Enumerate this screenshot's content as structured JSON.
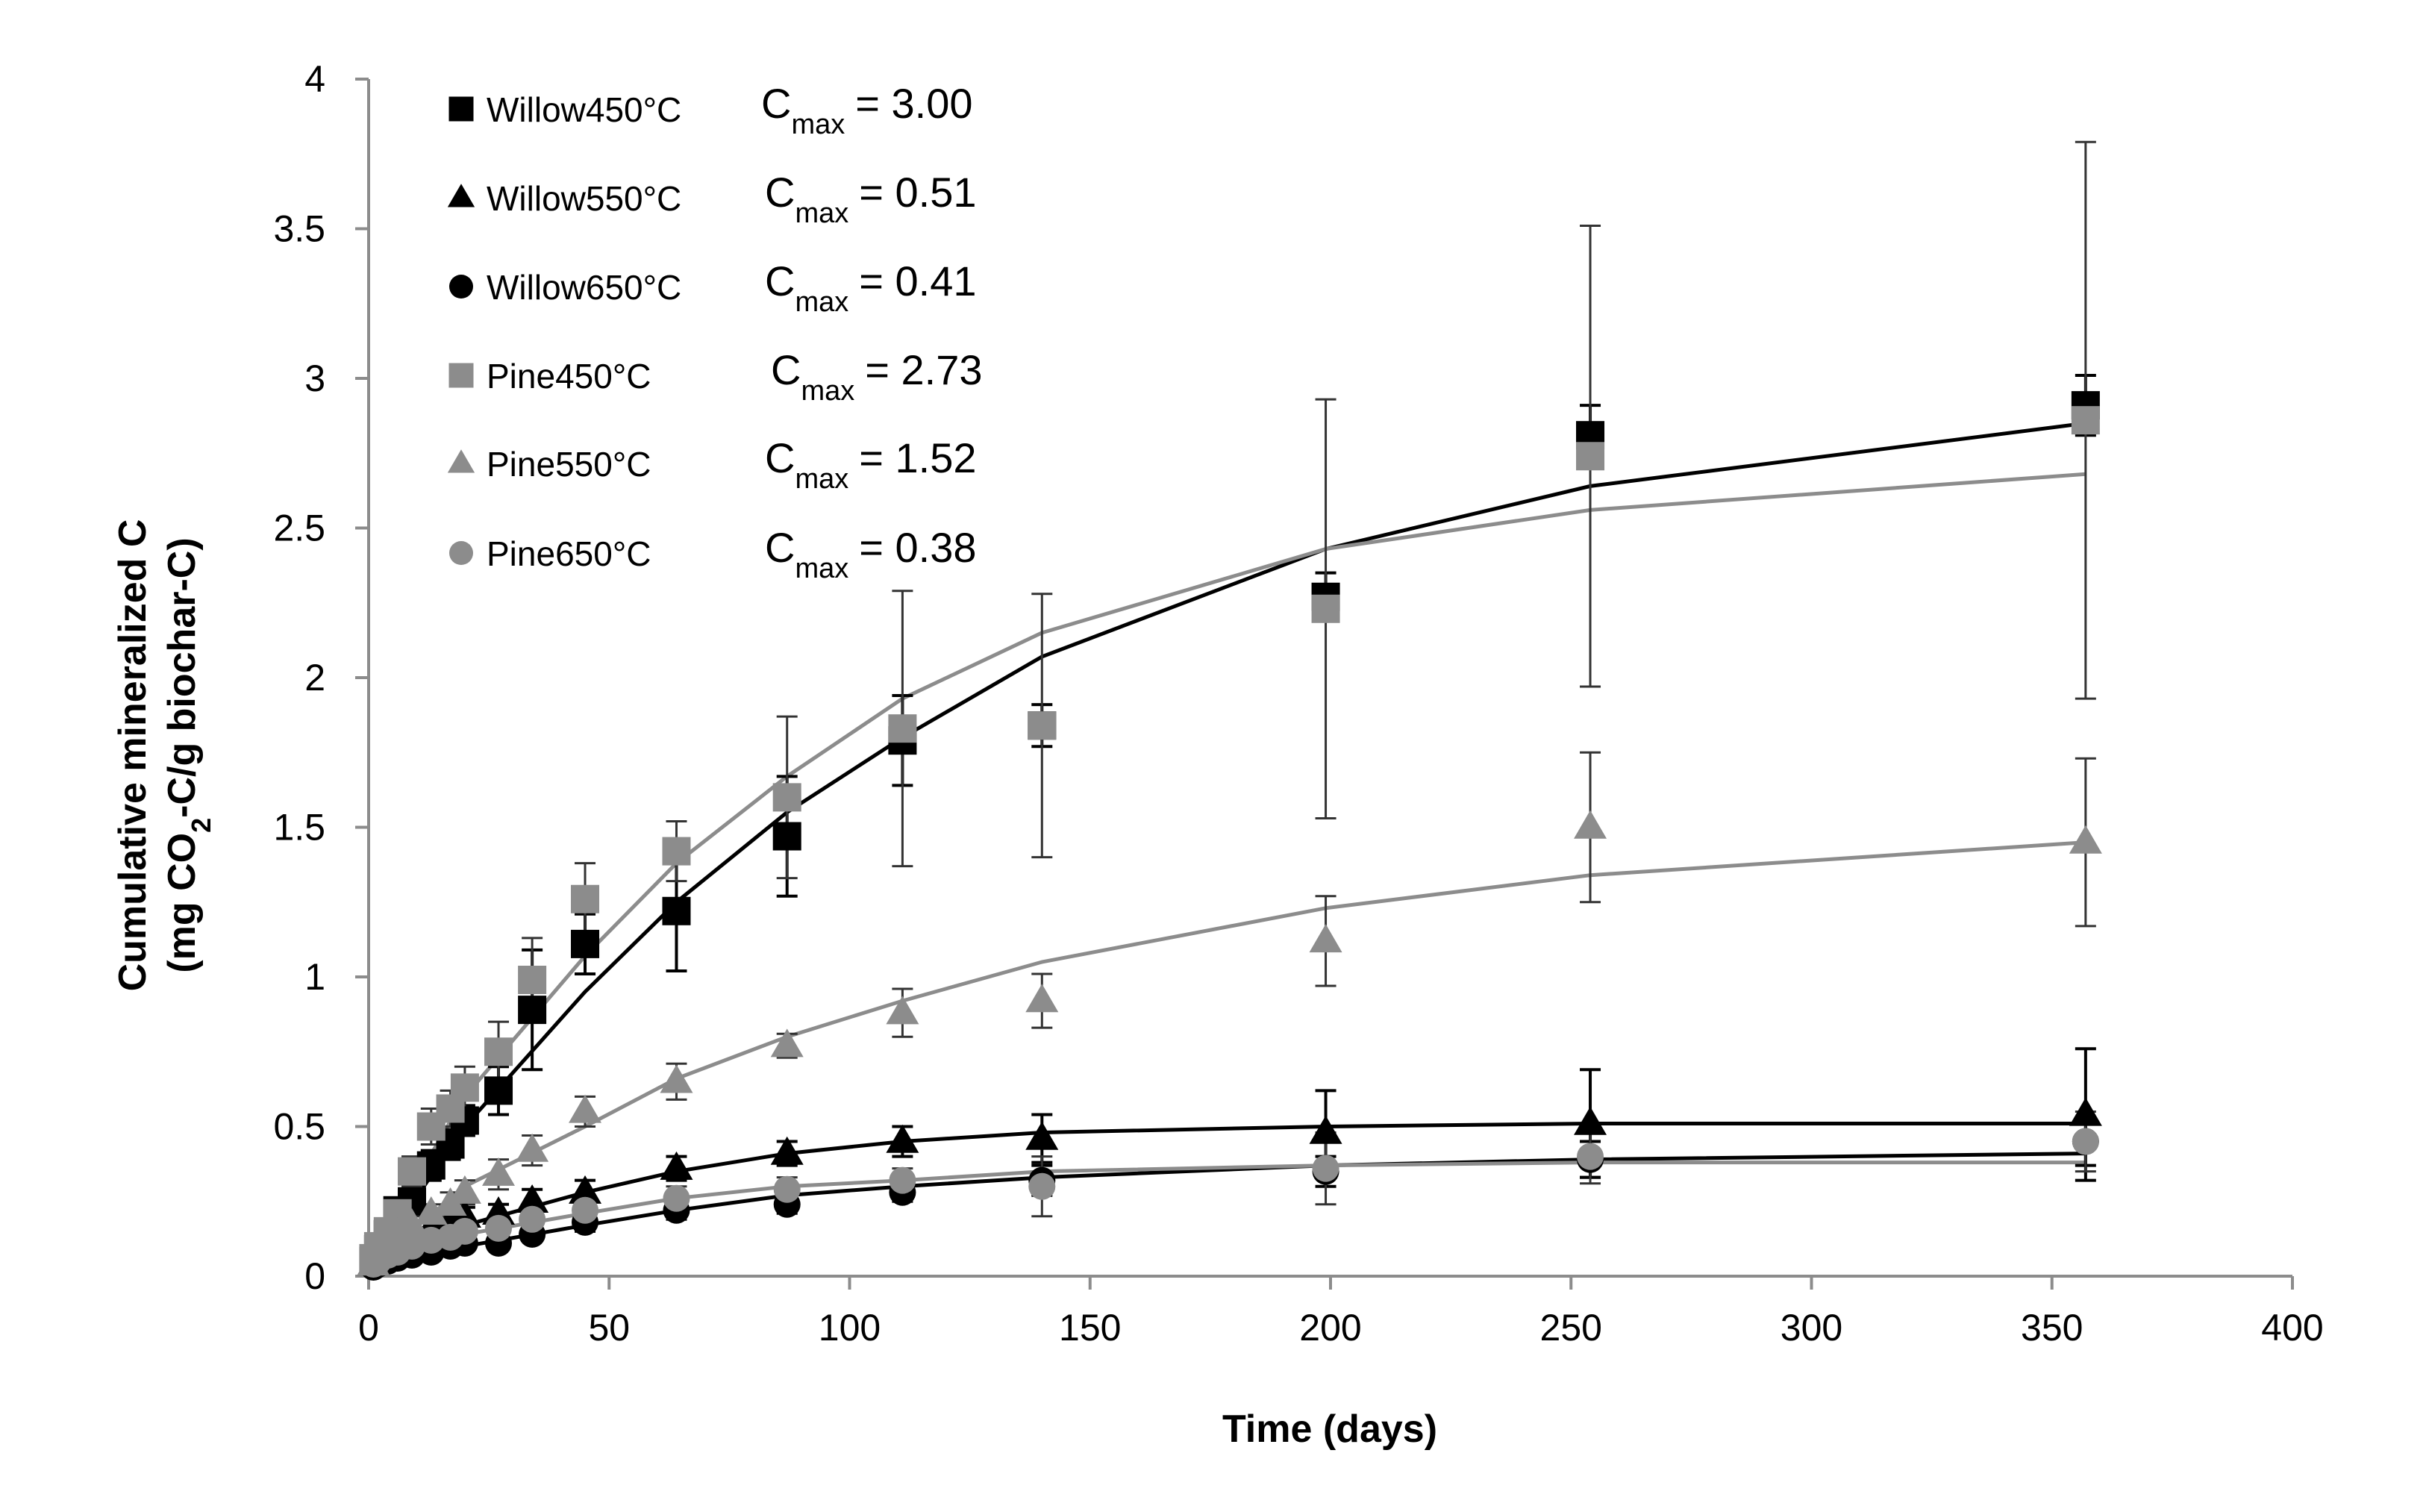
{
  "chart_data": {
    "type": "scatter",
    "xlabel": "Time (days)",
    "ylabel_line1": "Cumulative mineralized C",
    "ylabel_line2_prefix": "(mg CO",
    "ylabel_line2_sub": "2",
    "ylabel_line2_suffix": "-C/g biochar-C)",
    "xlim": [
      0,
      400
    ],
    "ylim": [
      0,
      4
    ],
    "xticks": [
      0,
      50,
      100,
      150,
      200,
      250,
      300,
      350,
      400
    ],
    "yticks": [
      0,
      0.5,
      1,
      1.5,
      2,
      2.5,
      3,
      3.5,
      4
    ],
    "xtick_labels": [
      "0",
      "50",
      "100",
      "150",
      "200",
      "250",
      "300",
      "350",
      "400"
    ],
    "ytick_labels": [
      "0",
      "0.5",
      "1",
      "1.5",
      "2",
      "2.5",
      "3",
      "3.5",
      "4"
    ],
    "legend_placement": "top-left",
    "cmax_label": "C",
    "cmax_sub": "max",
    "series": [
      {
        "name": "Willow450°C",
        "cmax": "= 3.00",
        "marker": "square",
        "color": "#000000",
        "x": [
          1,
          2,
          4,
          6,
          9,
          13,
          17,
          20,
          27,
          34,
          45,
          64,
          87,
          111,
          140,
          199,
          254,
          357
        ],
        "y": [
          0.05,
          0.09,
          0.14,
          0.22,
          0.25,
          0.37,
          0.44,
          0.52,
          0.62,
          0.89,
          1.11,
          1.22,
          1.47,
          1.79,
          1.84,
          2.27,
          2.81,
          2.91
        ],
        "err": [
          0.02,
          0.02,
          0.03,
          0.04,
          0.04,
          0.05,
          0.05,
          0.05,
          0.08,
          0.2,
          0.1,
          0.2,
          0.2,
          0.15,
          0.07,
          0.08,
          0.1,
          0.1
        ],
        "fit_x": [
          0,
          20,
          45,
          64,
          87,
          111,
          140,
          199,
          254,
          357
        ],
        "fit_y": [
          0.03,
          0.5,
          0.95,
          1.25,
          1.55,
          1.8,
          2.07,
          2.43,
          2.64,
          2.85
        ]
      },
      {
        "name": "Willow550°C",
        "cmax": "= 0.51",
        "marker": "triangle",
        "color": "#000000",
        "x": [
          1,
          2,
          4,
          6,
          9,
          13,
          17,
          20,
          27,
          34,
          45,
          64,
          87,
          111,
          140,
          199,
          254,
          357
        ],
        "y": [
          0.04,
          0.06,
          0.09,
          0.11,
          0.14,
          0.16,
          0.18,
          0.2,
          0.21,
          0.25,
          0.28,
          0.36,
          0.41,
          0.45,
          0.46,
          0.48,
          0.51,
          0.54
        ],
        "err": [
          0.01,
          0.01,
          0.02,
          0.02,
          0.02,
          0.02,
          0.03,
          0.03,
          0.03,
          0.04,
          0.04,
          0.04,
          0.04,
          0.05,
          0.08,
          0.14,
          0.18,
          0.22
        ],
        "fit_x": [
          0,
          20,
          45,
          64,
          87,
          111,
          140,
          199,
          254,
          357
        ],
        "fit_y": [
          0.03,
          0.17,
          0.28,
          0.35,
          0.41,
          0.45,
          0.48,
          0.5,
          0.51,
          0.51
        ]
      },
      {
        "name": "Willow650°C",
        "cmax": "= 0.41",
        "marker": "circle",
        "color": "#000000",
        "x": [
          1,
          2,
          4,
          6,
          9,
          13,
          17,
          20,
          27,
          34,
          45,
          64,
          87,
          111,
          140,
          199,
          254,
          357
        ],
        "y": [
          0.03,
          0.04,
          0.05,
          0.06,
          0.07,
          0.08,
          0.1,
          0.11,
          0.11,
          0.14,
          0.18,
          0.22,
          0.24,
          0.28,
          0.32,
          0.35,
          0.39,
          0.45
        ],
        "err": [
          0.01,
          0.01,
          0.01,
          0.01,
          0.01,
          0.01,
          0.02,
          0.02,
          0.02,
          0.02,
          0.03,
          0.03,
          0.03,
          0.03,
          0.05,
          0.05,
          0.06,
          0.08
        ],
        "fit_x": [
          0,
          20,
          45,
          64,
          87,
          111,
          140,
          199,
          254,
          357
        ],
        "fit_y": [
          0.02,
          0.1,
          0.17,
          0.22,
          0.27,
          0.3,
          0.33,
          0.37,
          0.39,
          0.41
        ]
      },
      {
        "name": "Pine450°C",
        "cmax": "= 2.73",
        "marker": "square",
        "color": "#8c8c8c",
        "x": [
          1,
          2,
          4,
          6,
          9,
          13,
          17,
          20,
          27,
          34,
          45,
          64,
          87,
          111,
          140,
          199,
          254,
          357
        ],
        "y": [
          0.06,
          0.1,
          0.15,
          0.21,
          0.35,
          0.5,
          0.56,
          0.63,
          0.75,
          0.99,
          1.26,
          1.42,
          1.6,
          1.83,
          1.84,
          2.23,
          2.74,
          2.86
        ],
        "err": [
          0.02,
          0.02,
          0.03,
          0.04,
          0.05,
          0.06,
          0.06,
          0.07,
          0.1,
          0.14,
          0.12,
          0.1,
          0.27,
          0.46,
          0.44,
          0.7,
          0.77,
          0.93
        ],
        "fit_x": [
          0,
          20,
          45,
          64,
          87,
          111,
          140,
          199,
          254,
          357
        ],
        "fit_y": [
          0.05,
          0.6,
          1.07,
          1.38,
          1.67,
          1.93,
          2.15,
          2.43,
          2.56,
          2.68
        ]
      },
      {
        "name": "Pine550°C",
        "cmax": "= 1.52",
        "marker": "triangle",
        "color": "#8c8c8c",
        "x": [
          1,
          2,
          4,
          6,
          9,
          13,
          17,
          20,
          27,
          34,
          45,
          64,
          87,
          111,
          140,
          199,
          254,
          357
        ],
        "y": [
          0.04,
          0.07,
          0.1,
          0.14,
          0.17,
          0.21,
          0.24,
          0.28,
          0.34,
          0.42,
          0.55,
          0.65,
          0.77,
          0.88,
          0.92,
          1.12,
          1.5,
          1.45
        ],
        "err": [
          0.01,
          0.02,
          0.02,
          0.02,
          0.03,
          0.03,
          0.04,
          0.04,
          0.05,
          0.05,
          0.05,
          0.06,
          0.04,
          0.08,
          0.09,
          0.15,
          0.25,
          0.28
        ],
        "fit_x": [
          0,
          20,
          45,
          64,
          87,
          111,
          140,
          199,
          254,
          357
        ],
        "fit_y": [
          0.03,
          0.3,
          0.5,
          0.66,
          0.8,
          0.92,
          1.05,
          1.23,
          1.34,
          1.45
        ]
      },
      {
        "name": "Pine650°C",
        "cmax": "= 0.38",
        "marker": "circle",
        "color": "#8c8c8c",
        "x": [
          1,
          2,
          4,
          6,
          9,
          13,
          17,
          20,
          27,
          34,
          45,
          64,
          87,
          111,
          140,
          199,
          254,
          357
        ],
        "y": [
          0.04,
          0.05,
          0.07,
          0.08,
          0.1,
          0.12,
          0.13,
          0.15,
          0.16,
          0.19,
          0.22,
          0.26,
          0.29,
          0.32,
          0.3,
          0.36,
          0.4,
          0.45
        ],
        "err": [
          0.01,
          0.01,
          0.01,
          0.01,
          0.02,
          0.02,
          0.02,
          0.02,
          0.02,
          0.02,
          0.03,
          0.04,
          0.04,
          0.04,
          0.1,
          0.12,
          0.09,
          0.1
        ],
        "fit_x": [
          0,
          20,
          45,
          64,
          87,
          111,
          140,
          199,
          254,
          357
        ],
        "fit_y": [
          0.03,
          0.14,
          0.21,
          0.26,
          0.3,
          0.32,
          0.35,
          0.37,
          0.38,
          0.38
        ]
      }
    ]
  }
}
